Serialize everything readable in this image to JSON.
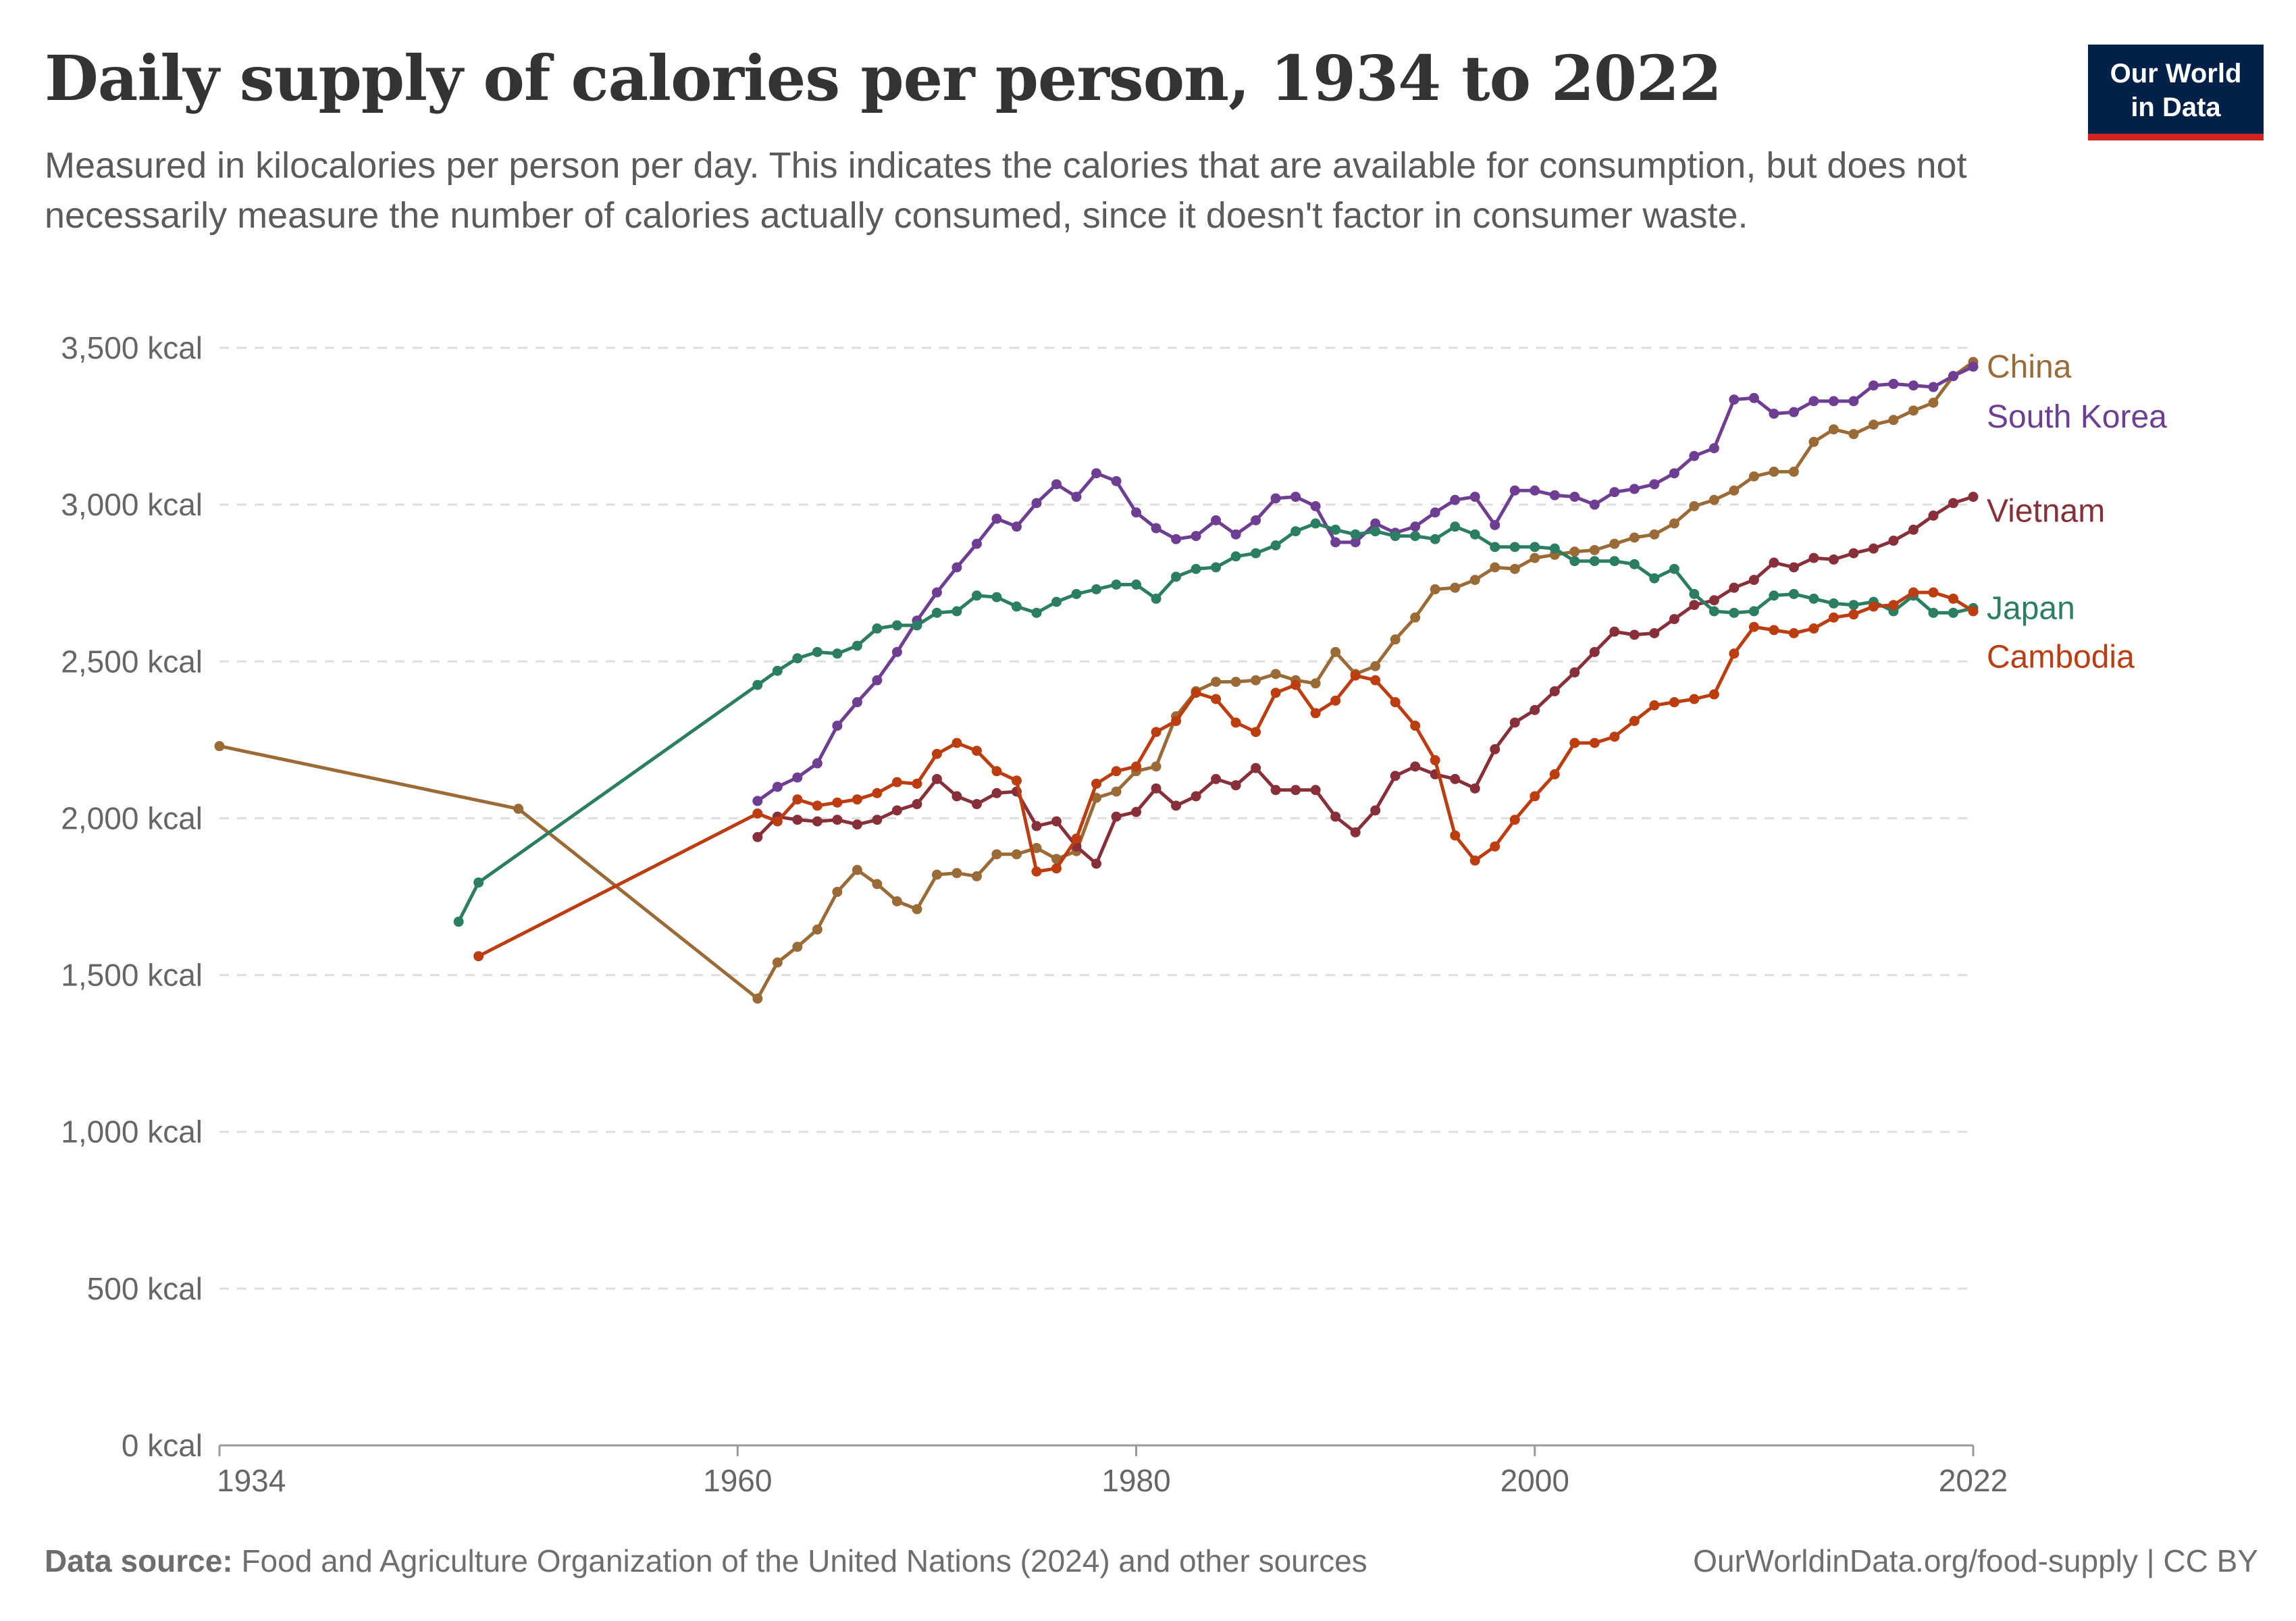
{
  "header": {
    "title": "Daily supply of calories per person, 1934 to 2022",
    "subtitle": "Measured in kilocalories per person per day. This indicates the calories that are available for consumption, but does not necessarily measure the number of calories actually consumed, since it doesn't factor in consumer waste."
  },
  "logo": {
    "line1": "Our World",
    "line2": "in Data"
  },
  "footer": {
    "source_label": "Data source:",
    "source_text": "Food and Agriculture Organization of the United Nations (2024) and other sources",
    "url": "OurWorldinData.org/food-supply | CC BY"
  },
  "chart_data": {
    "type": "line",
    "xlim": [
      1934,
      2022
    ],
    "ylim": [
      0,
      3500
    ],
    "x_ticks": [
      "1934",
      "1960",
      "1980",
      "2000",
      "2022"
    ],
    "x_tick_values": [
      1934,
      1960,
      1980,
      2000,
      2022
    ],
    "y_ticks": [
      "0 kcal",
      "500 kcal",
      "1,000 kcal",
      "1,500 kcal",
      "2,000 kcal",
      "2,500 kcal",
      "3,000 kcal",
      "3,500 kcal"
    ],
    "y_tick_values": [
      0,
      500,
      1000,
      1500,
      2000,
      2500,
      3000,
      3500
    ],
    "grid": "horizontal dashed",
    "legend": "direct labels at right",
    "series": [
      {
        "name": "China",
        "color": "#9a6b36",
        "x": [
          1934,
          1949,
          1961,
          1962,
          1963,
          1964,
          1965,
          1966,
          1967,
          1968,
          1969,
          1970,
          1971,
          1972,
          1973,
          1974,
          1975,
          1976,
          1977,
          1978,
          1979,
          1980,
          1981,
          1982,
          1983,
          1984,
          1985,
          1986,
          1987,
          1988,
          1989,
          1990,
          1991,
          1992,
          1993,
          1994,
          1995,
          1996,
          1997,
          1998,
          1999,
          2000,
          2001,
          2002,
          2003,
          2004,
          2005,
          2006,
          2007,
          2008,
          2009,
          2010,
          2011,
          2012,
          2013,
          2014,
          2015,
          2016,
          2017,
          2018,
          2019,
          2020,
          2021,
          2022
        ],
        "y": [
          2230,
          2030,
          1425,
          1540,
          1590,
          1645,
          1765,
          1835,
          1790,
          1735,
          1710,
          1820,
          1825,
          1815,
          1885,
          1885,
          1905,
          1870,
          1895,
          2065,
          2085,
          2150,
          2165,
          2325,
          2405,
          2435,
          2435,
          2440,
          2460,
          2440,
          2430,
          2530,
          2460,
          2485,
          2570,
          2640,
          2730,
          2735,
          2760,
          2800,
          2795,
          2830,
          2840,
          2850,
          2855,
          2875,
          2895,
          2905,
          2940,
          2995,
          3015,
          3045,
          3090,
          3105,
          3105,
          3200,
          3240,
          3225,
          3255,
          3270,
          3300,
          3325,
          3410,
          3455
        ]
      },
      {
        "name": "South Korea",
        "color": "#6d3e91",
        "x": [
          1961,
          1962,
          1963,
          1964,
          1965,
          1966,
          1967,
          1968,
          1969,
          1970,
          1971,
          1972,
          1973,
          1974,
          1975,
          1976,
          1977,
          1978,
          1979,
          1980,
          1981,
          1982,
          1983,
          1984,
          1985,
          1986,
          1987,
          1988,
          1989,
          1990,
          1991,
          1992,
          1993,
          1994,
          1995,
          1996,
          1997,
          1998,
          1999,
          2000,
          2001,
          2002,
          2003,
          2004,
          2005,
          2006,
          2007,
          2008,
          2009,
          2010,
          2011,
          2012,
          2013,
          2014,
          2015,
          2016,
          2017,
          2018,
          2019,
          2020,
          2021,
          2022
        ],
        "y": [
          2055,
          2100,
          2130,
          2175,
          2295,
          2370,
          2440,
          2530,
          2630,
          2720,
          2800,
          2875,
          2955,
          2930,
          3005,
          3065,
          3025,
          3100,
          3075,
          2975,
          2925,
          2890,
          2900,
          2950,
          2905,
          2950,
          3020,
          3025,
          2995,
          2880,
          2880,
          2940,
          2910,
          2930,
          2975,
          3015,
          3025,
          2935,
          3045,
          3045,
          3030,
          3025,
          3000,
          3040,
          3050,
          3065,
          3100,
          3155,
          3180,
          3335,
          3340,
          3290,
          3295,
          3330,
          3330,
          3330,
          3380,
          3385,
          3380,
          3375,
          3410,
          3440
        ]
      },
      {
        "name": "Vietnam",
        "color": "#883039",
        "x": [
          1961,
          1962,
          1963,
          1964,
          1965,
          1966,
          1967,
          1968,
          1969,
          1970,
          1971,
          1972,
          1973,
          1974,
          1975,
          1976,
          1977,
          1978,
          1979,
          1980,
          1981,
          1982,
          1983,
          1984,
          1985,
          1986,
          1987,
          1988,
          1989,
          1990,
          1991,
          1992,
          1993,
          1994,
          1995,
          1996,
          1997,
          1998,
          1999,
          2000,
          2001,
          2002,
          2003,
          2004,
          2005,
          2006,
          2007,
          2008,
          2009,
          2010,
          2011,
          2012,
          2013,
          2014,
          2015,
          2016,
          2017,
          2018,
          2019,
          2020,
          2021,
          2022
        ],
        "y": [
          1940,
          2005,
          1995,
          1990,
          1995,
          1980,
          1995,
          2025,
          2045,
          2125,
          2070,
          2045,
          2080,
          2085,
          1975,
          1990,
          1910,
          1855,
          2005,
          2020,
          2095,
          2040,
          2070,
          2125,
          2105,
          2160,
          2090,
          2090,
          2090,
          2005,
          1955,
          2025,
          2135,
          2165,
          2140,
          2125,
          2095,
          2220,
          2305,
          2345,
          2405,
          2465,
          2530,
          2595,
          2585,
          2590,
          2635,
          2680,
          2695,
          2735,
          2760,
          2815,
          2800,
          2830,
          2825,
          2845,
          2860,
          2885,
          2920,
          2965,
          3005,
          3025
        ]
      },
      {
        "name": "Japan",
        "color": "#2b7e63",
        "x": [
          1946,
          1947,
          1961,
          1962,
          1963,
          1964,
          1965,
          1966,
          1967,
          1968,
          1969,
          1970,
          1971,
          1972,
          1973,
          1974,
          1975,
          1976,
          1977,
          1978,
          1979,
          1980,
          1981,
          1982,
          1983,
          1984,
          1985,
          1986,
          1987,
          1988,
          1989,
          1990,
          1991,
          1992,
          1993,
          1994,
          1995,
          1996,
          1997,
          1998,
          1999,
          2000,
          2001,
          2002,
          2003,
          2004,
          2005,
          2006,
          2007,
          2008,
          2009,
          2010,
          2011,
          2012,
          2013,
          2014,
          2015,
          2016,
          2017,
          2018,
          2019,
          2020,
          2021,
          2022
        ],
        "y": [
          1670,
          1795,
          2425,
          2470,
          2510,
          2530,
          2525,
          2550,
          2605,
          2615,
          2615,
          2655,
          2660,
          2710,
          2705,
          2675,
          2655,
          2690,
          2715,
          2730,
          2745,
          2745,
          2700,
          2770,
          2795,
          2800,
          2835,
          2845,
          2870,
          2915,
          2940,
          2920,
          2905,
          2915,
          2900,
          2900,
          2890,
          2930,
          2905,
          2865,
          2865,
          2865,
          2860,
          2820,
          2820,
          2820,
          2810,
          2765,
          2795,
          2715,
          2660,
          2655,
          2660,
          2710,
          2715,
          2700,
          2685,
          2680,
          2690,
          2660,
          2710,
          2655,
          2655,
          2670
        ]
      },
      {
        "name": "Cambodia",
        "color": "#bb3d10",
        "x": [
          1947,
          1961,
          1962,
          1963,
          1964,
          1965,
          1966,
          1967,
          1968,
          1969,
          1970,
          1971,
          1972,
          1973,
          1974,
          1975,
          1976,
          1977,
          1978,
          1979,
          1980,
          1981,
          1982,
          1983,
          1984,
          1985,
          1986,
          1987,
          1988,
          1989,
          1990,
          1991,
          1992,
          1993,
          1994,
          1995,
          1996,
          1997,
          1998,
          1999,
          2000,
          2001,
          2002,
          2003,
          2004,
          2005,
          2006,
          2007,
          2008,
          2009,
          2010,
          2011,
          2012,
          2013,
          2014,
          2015,
          2016,
          2017,
          2018,
          2019,
          2020,
          2021,
          2022
        ],
        "y": [
          1560,
          2015,
          1990,
          2060,
          2040,
          2050,
          2060,
          2080,
          2115,
          2110,
          2205,
          2240,
          2215,
          2150,
          2120,
          1830,
          1840,
          1935,
          2110,
          2150,
          2165,
          2275,
          2310,
          2400,
          2380,
          2305,
          2275,
          2400,
          2425,
          2335,
          2375,
          2455,
          2440,
          2370,
          2295,
          2185,
          1945,
          1865,
          1910,
          1995,
          2070,
          2140,
          2240,
          2240,
          2260,
          2310,
          2360,
          2370,
          2380,
          2395,
          2525,
          2610,
          2600,
          2590,
          2605,
          2640,
          2650,
          2675,
          2680,
          2720,
          2720,
          2700,
          2660
        ]
      }
    ]
  }
}
